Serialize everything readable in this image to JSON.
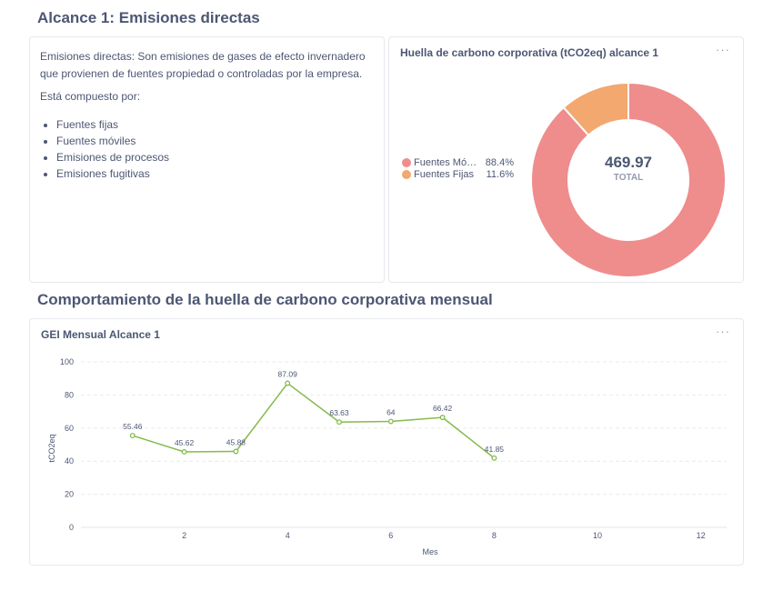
{
  "sections": {
    "scope_title": "Alcance 1: Emisiones directas",
    "monthly_title": "Comportamiento de la huella de carbono corporativa mensual"
  },
  "text_card": {
    "paragraph1": "Emisiones directas: Son emisiones de gases de efecto invernadero que provienen de fuentes propiedad o controladas por la empresa.",
    "paragraph2": "Está compuesto por:",
    "items": [
      "Fuentes fijas",
      "Fuentes móviles",
      "Emisiones de procesos",
      "Emisiones fugitivas"
    ]
  },
  "donut_card": {
    "title": "Huella de carbono corporativa (tCO2eq) alcance 1",
    "menu": "···",
    "total_value": "469.97",
    "total_label": "TOTAL",
    "legend": [
      {
        "name": "Fuentes Móviles",
        "display_name": "Fuentes Móv...",
        "pct": "88.4%",
        "value": 0.884,
        "color": "#ef8c8c"
      },
      {
        "name": "Fuentes Fijas",
        "display_name": "Fuentes Fijas",
        "pct": "11.6%",
        "value": 0.116,
        "color": "#f2a86f"
      }
    ]
  },
  "line_card": {
    "title": "GEI Mensual Alcance 1",
    "menu": "···"
  },
  "chart_data": {
    "type": "line",
    "x": [
      1,
      2,
      3,
      4,
      5,
      6,
      7,
      8
    ],
    "series": [
      {
        "values": [
          55.46,
          45.62,
          45.88,
          87.09,
          63.63,
          64,
          66.42,
          41.85
        ],
        "labels": [
          "55.46",
          "45.62",
          "45.88",
          "87.09",
          "63.63",
          "64",
          "66.42",
          "41.85"
        ],
        "color": "#84bb4c"
      }
    ],
    "xlabel": "Mes",
    "ylabel": "tCO2eq",
    "xlim": [
      0,
      12.5
    ],
    "ylim": [
      0,
      100
    ],
    "xticks": [
      2,
      4,
      6,
      8,
      10,
      12
    ],
    "yticks": [
      0,
      20,
      40,
      60,
      80,
      100
    ],
    "grid": true
  }
}
